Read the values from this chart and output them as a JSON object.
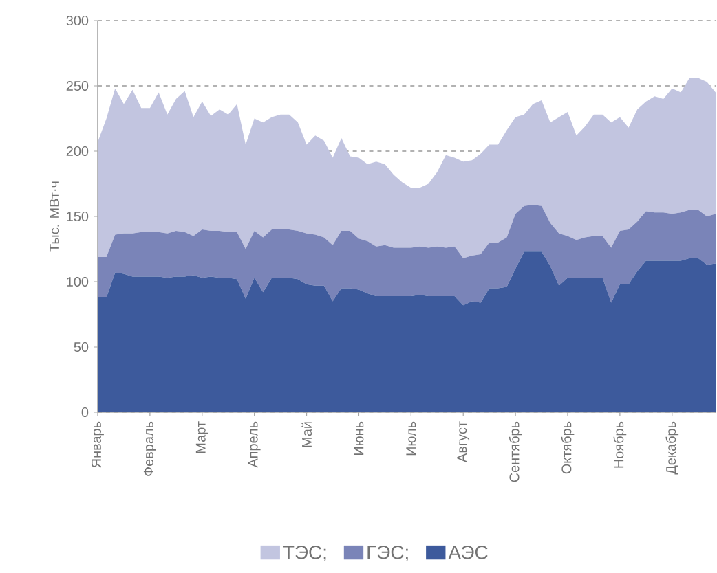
{
  "chart_data": {
    "type": "area",
    "stacked": true,
    "ylabel": "Тыс. МВт·ч",
    "categories": [
      "Январь",
      null,
      null,
      null,
      null,
      null,
      "Февраль",
      null,
      null,
      null,
      null,
      null,
      "Март",
      null,
      null,
      null,
      null,
      null,
      "Апрель",
      null,
      null,
      null,
      null,
      null,
      "Май",
      null,
      null,
      null,
      null,
      null,
      "Июнь",
      null,
      null,
      null,
      null,
      null,
      "Июль",
      null,
      null,
      null,
      null,
      null,
      "Август",
      null,
      null,
      null,
      null,
      null,
      "Сентябрь",
      null,
      null,
      null,
      null,
      null,
      "Октябрь",
      null,
      null,
      null,
      null,
      null,
      "Ноябрь",
      null,
      null,
      null,
      null,
      null,
      "Декабрь",
      null,
      null,
      null,
      null,
      null
    ],
    "ylim": [
      0,
      300
    ],
    "yticks": [
      0,
      50,
      100,
      150,
      200,
      250,
      300
    ],
    "grid": "y",
    "legend": "bottom",
    "series": [
      {
        "name": "АЭС",
        "color": "#3d5a9c",
        "values": [
          88,
          88,
          107,
          106,
          104,
          104,
          104,
          104,
          103,
          104,
          104,
          105,
          103,
          104,
          103,
          103,
          102,
          87,
          103,
          92,
          103,
          103,
          103,
          102,
          98,
          97,
          97,
          85,
          95,
          95,
          94,
          91,
          89,
          89,
          89,
          89,
          89,
          90,
          89,
          89,
          89,
          89,
          82,
          85,
          84,
          95,
          95,
          96,
          110,
          123,
          123,
          123,
          112,
          97,
          103,
          103,
          103,
          103,
          103,
          84,
          98,
          98,
          108,
          116,
          116,
          116,
          116,
          116,
          118,
          118,
          113,
          114
        ]
      },
      {
        "name": "ГЭС;",
        "color": "#7a84b8",
        "values": [
          31,
          31,
          29,
          31,
          33,
          34,
          34,
          34,
          34,
          35,
          34,
          30,
          37,
          35,
          36,
          35,
          36,
          38,
          36,
          42,
          37,
          37,
          37,
          37,
          39,
          39,
          37,
          43,
          44,
          44,
          39,
          40,
          38,
          39,
          37,
          37,
          37,
          37,
          37,
          38,
          37,
          38,
          36,
          35,
          37,
          35,
          35,
          38,
          42,
          35,
          36,
          35,
          33,
          40,
          32,
          29,
          31,
          32,
          32,
          42,
          41,
          42,
          38,
          38,
          37,
          37,
          36,
          37,
          37,
          37,
          37,
          38
        ]
      },
      {
        "name": "ТЭС;",
        "color": "#c2c5e0",
        "values": [
          88,
          106,
          112,
          99,
          110,
          95,
          95,
          107,
          91,
          101,
          108,
          91,
          98,
          88,
          93,
          90,
          98,
          80,
          86,
          88,
          86,
          88,
          88,
          83,
          68,
          76,
          74,
          67,
          71,
          57,
          62,
          59,
          65,
          62,
          56,
          50,
          46,
          45,
          49,
          57,
          71,
          68,
          74,
          73,
          77,
          75,
          75,
          82,
          74,
          70,
          77,
          81,
          77,
          89,
          95,
          80,
          85,
          93,
          93,
          96,
          87,
          78,
          86,
          84,
          89,
          87,
          96,
          92,
          101,
          101,
          103,
          93
        ]
      }
    ]
  }
}
